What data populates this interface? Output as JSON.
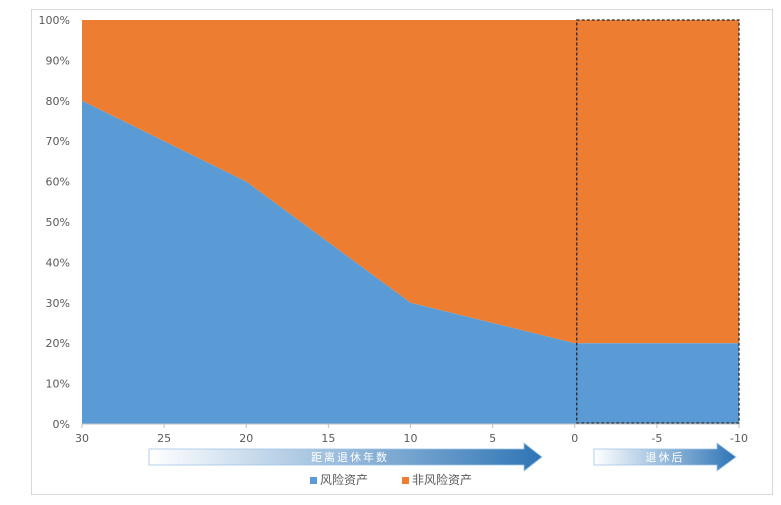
{
  "chart_data": {
    "type": "area",
    "stacked": true,
    "x": [
      30,
      25,
      20,
      15,
      10,
      5,
      0,
      -5,
      -10
    ],
    "x_tick_labels": [
      "30",
      "25",
      "20",
      "15",
      "10",
      "5",
      "0",
      "-5",
      "-10"
    ],
    "series": [
      {
        "name": "风险资产",
        "color": "#5B9BD5",
        "points": [
          [
            30,
            80
          ],
          [
            20,
            60
          ],
          [
            10,
            30
          ],
          [
            0,
            20
          ],
          [
            -10,
            20
          ]
        ]
      },
      {
        "name": "非风险资产",
        "color": "#ED7D31",
        "points": [
          [
            30,
            20
          ],
          [
            20,
            40
          ],
          [
            10,
            70
          ],
          [
            0,
            80
          ],
          [
            -10,
            80
          ]
        ]
      }
    ],
    "y_tick_labels": [
      "0%",
      "10%",
      "20%",
      "30%",
      "40%",
      "50%",
      "60%",
      "70%",
      "80%",
      "90%",
      "100%"
    ],
    "xlim": [
      30,
      -10
    ],
    "ylim": [
      0,
      100
    ],
    "grid": false,
    "legend_position": "bottom",
    "annotations": {
      "pre_retirement_arrow": "距离退休年数",
      "post_retirement_arrow": "退休后",
      "dashed_box_x_range": [
        0,
        -10
      ]
    }
  }
}
